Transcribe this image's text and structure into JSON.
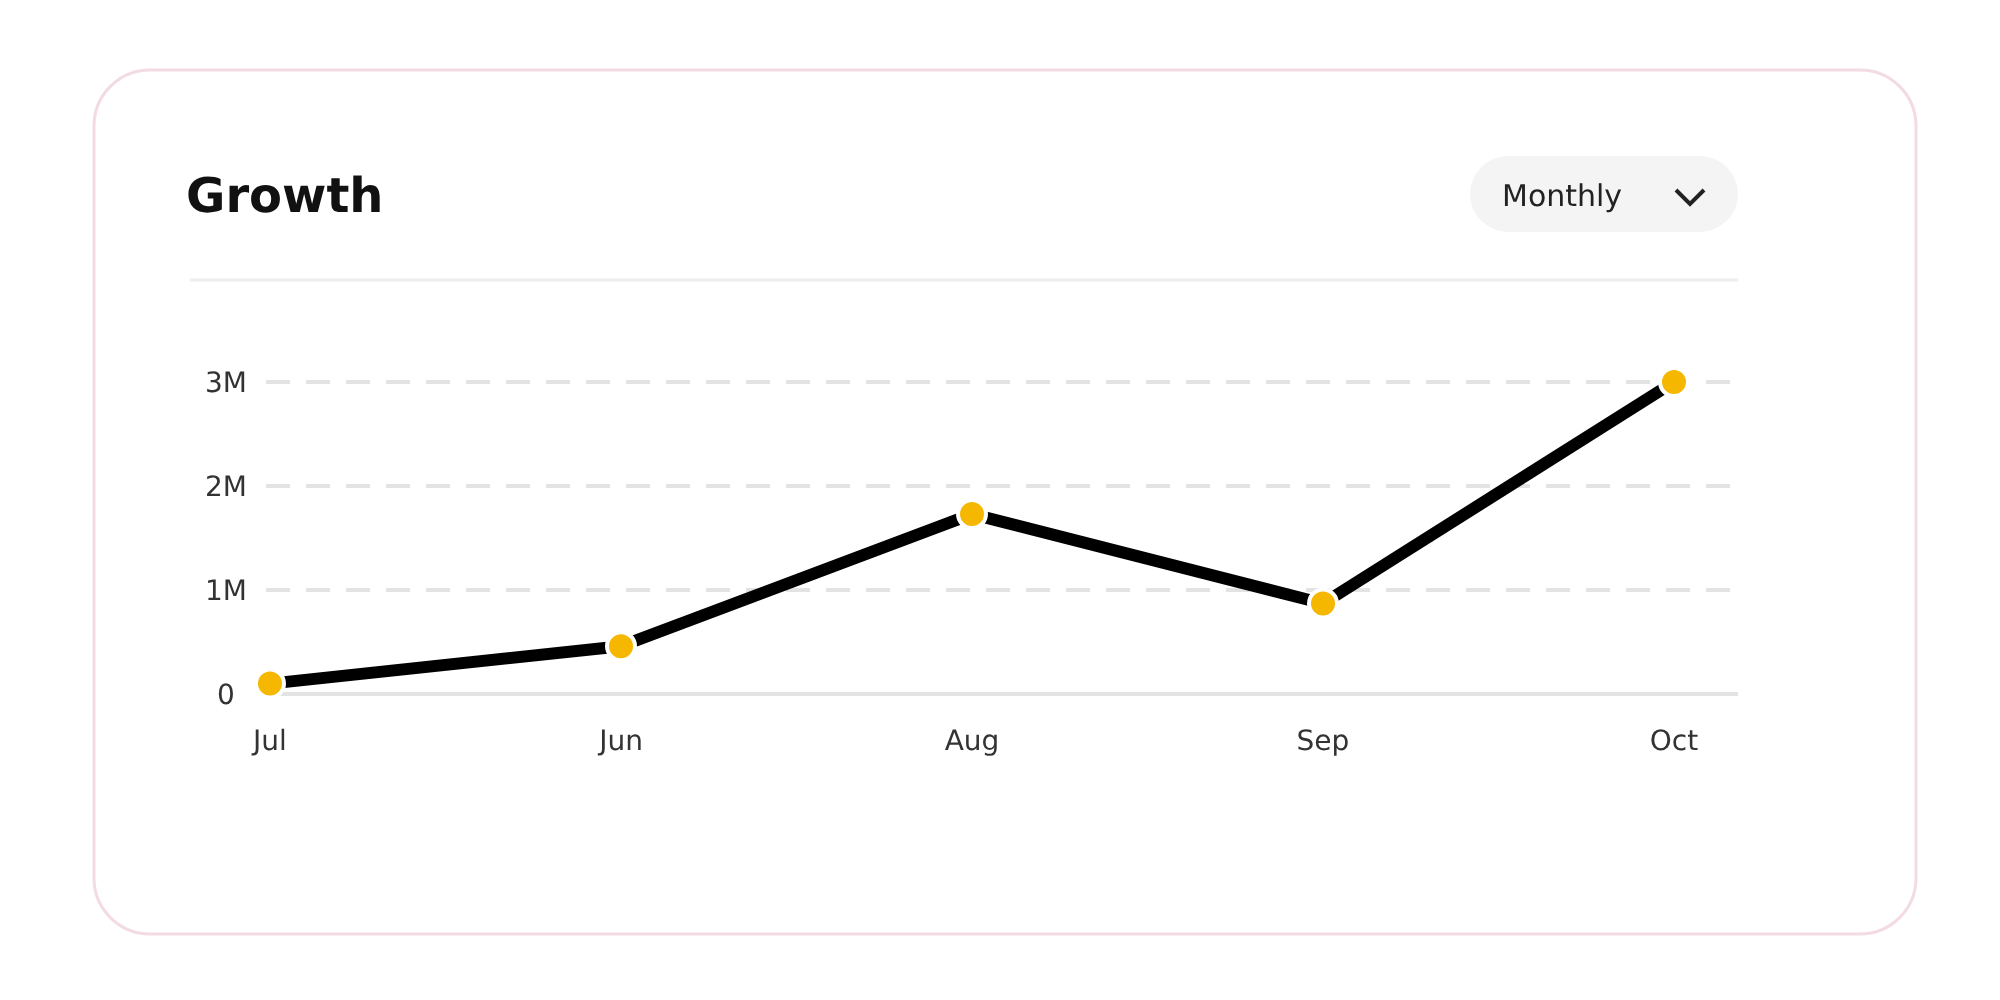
{
  "chart_data": {
    "type": "line",
    "title": "Growth",
    "annotations": [
      "Monthly"
    ],
    "categories": [
      "Jul",
      "Jun",
      "Aug",
      "Sep",
      "Oct"
    ],
    "series": [
      {
        "color": "#000000",
        "colors": [
          "#f5b700",
          "#f5b700",
          "#f5b700",
          "#f5b700",
          "#f5b700"
        ],
        "values": [
          100000,
          460000,
          1730000,
          870000,
          3000000
        ]
      }
    ],
    "marker": "circle",
    "ylim": [
      0,
      3000000
    ],
    "yticks": [
      {
        "value": 0,
        "label": "0"
      },
      {
        "value": 1000000,
        "label": "1M"
      },
      {
        "value": 2000000,
        "label": "2M"
      },
      {
        "value": 3000000,
        "label": "3M"
      }
    ],
    "grid": "y"
  }
}
